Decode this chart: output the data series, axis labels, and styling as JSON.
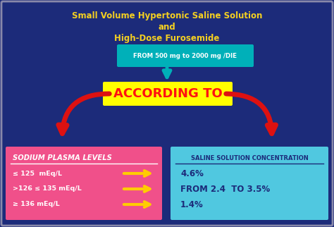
{
  "bg_color": "#1c2b7a",
  "title_line1": "Small Volume Hypertonic Saline Solution",
  "title_line2": "and",
  "title_line3": "High-Dose Furosemide",
  "title_color": "#f5d020",
  "furosemide_box_text": "FROM 500 mg to 2000 mg /DIE",
  "furosemide_box_bg": "#00b0b9",
  "furosemide_box_text_color": "#ffffff",
  "according_to_text": "ACCORDING TO",
  "according_to_bg": "#ffff00",
  "according_to_text_color": "#ff1111",
  "left_box_bg": "#f0508a",
  "left_box_title": "SODIUM PLASMA LEVELS",
  "left_box_title_color": "#ffffff",
  "left_box_items": [
    "≤ 125  mEq/L",
    ">126 ≤ 135 mEq/L",
    "≥ 136 mEq/L"
  ],
  "left_box_item_color": "#ffffff",
  "right_box_bg": "#50c8e0",
  "right_box_title": "SALINE SOLUTION CONCENTRATION",
  "right_box_title_color": "#1c2b7a",
  "right_box_items": [
    "4.6%",
    "FROM 2.4  TO 3.5%",
    "1.4%"
  ],
  "right_box_item_color": "#1c2b7a",
  "arrow_color_teal": "#00b0b9",
  "arrow_color_red": "#dd1111",
  "arrow_color_yellow": "#ffcc00",
  "border_color": "#8888aa"
}
